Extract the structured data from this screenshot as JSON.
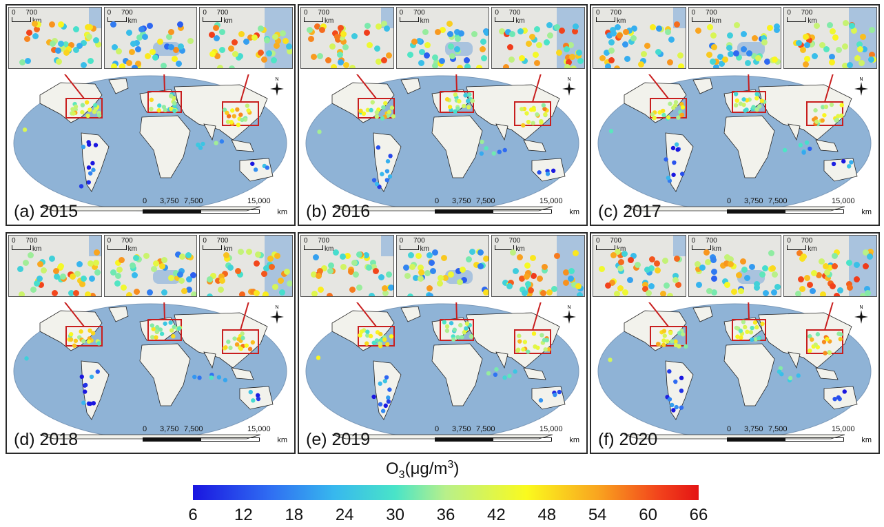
{
  "panels": [
    {
      "label": "(a) 2015"
    },
    {
      "label": "(b) 2016"
    },
    {
      "label": "(c) 2017"
    },
    {
      "label": "(d) 2018"
    },
    {
      "label": "(e) 2019"
    },
    {
      "label": "(f) 2020"
    }
  ],
  "inset_scale": {
    "zero": "0",
    "value": "700",
    "unit": "km"
  },
  "map_scale": {
    "t0": "0",
    "t1": "3,750",
    "t2": "7,500",
    "t3": "15,000",
    "unit": "km"
  },
  "compass_label": "N",
  "legend": {
    "title_main": "O",
    "title_sub": "3",
    "title_rest": "(μg/m",
    "title_sup": "3",
    "title_end": ")",
    "ticks": [
      "6",
      "12",
      "18",
      "24",
      "30",
      "36",
      "42",
      "48",
      "54",
      "60",
      "66"
    ],
    "min": 6,
    "max": 66,
    "colors": [
      "#1a16e0",
      "#2f6cf2",
      "#37b8ee",
      "#49e4c8",
      "#b8f08a",
      "#fafa1e",
      "#f9a51f",
      "#f2441c",
      "#e41414"
    ]
  },
  "colors": {
    "ocean": "#8fb3d6",
    "land": "#ffffff",
    "panel_border": "#2a2a2a",
    "highlight_box": "#c81e1e"
  }
}
